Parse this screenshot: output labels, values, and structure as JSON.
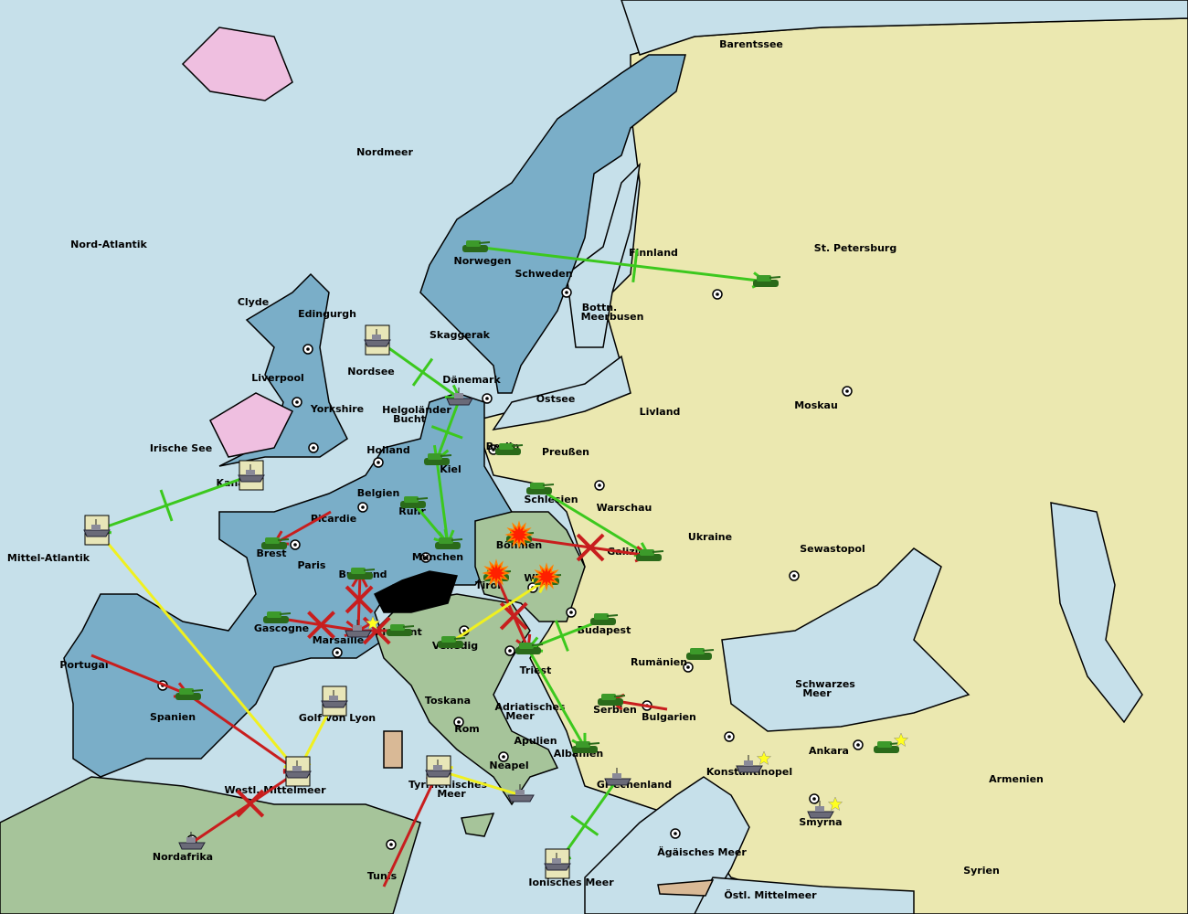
{
  "colors": {
    "sea": "#c6e0ea",
    "power_blue": "#7aaec8",
    "power_yellow": "#ebe8b0",
    "power_green": "#a6c49a",
    "neutral_pink": "#efbfe0",
    "neutral_tan": "#d9b996",
    "impassable": "#000000",
    "order_success": "#3cc81e",
    "order_failed": "#c81e1e",
    "order_support": "#f0f020"
  },
  "territories": [
    "Nordmeer",
    "Barentssee",
    "Nord-Atlantik",
    "Norwegen",
    "Schweden",
    "Finnland",
    "St. Petersburg",
    "Clyde",
    "Edingurgh",
    "Bottn.",
    "Meerbusen",
    "Skaggerak",
    "Nordsee",
    "Liverpool",
    "Dänemark",
    "Ostsee",
    "Livland",
    "Moskau",
    "Yorkshire",
    "Helgoländer",
    "Bucht",
    "Irische See",
    "Holland",
    "Berlin",
    "Preußen",
    "Kiel",
    "Kanal",
    "Belgien",
    "Schlesien",
    "Warschau",
    "Ruhr",
    "Picardie",
    "Ukraine",
    "Brest",
    "Böhmen",
    "Galizien",
    "Sewastopol",
    "Mittel-Atlantik",
    "München",
    "Paris",
    "Burgund",
    "Wien",
    "Tirol",
    "Gascogne",
    "Piemont",
    "Budapest",
    "Marsaille",
    "Venedig",
    "Portugal",
    "Rumänien",
    "Triest",
    "Schwarzes",
    "Meer",
    "Toskana",
    "Adriatisches",
    "Meer",
    "Serbien",
    "Bulgarien",
    "Spanien",
    "Golf von Lyon",
    "Rom",
    "Apulien",
    "Albanien",
    "Ankara",
    "Neapel",
    "Konstantinopel",
    "Armenien",
    "Griechenland",
    "Tyrrhenisches",
    "Meer",
    "Westl. Mittelmeer",
    "Smyrna",
    "Nordafrika",
    "Ägäisches Meer",
    "Tunis",
    "Syrien",
    "Ionisches Meer",
    "Östl. Mittelmeer"
  ],
  "units": [
    {
      "type": "army",
      "location": "Norwegen",
      "power": "green"
    },
    {
      "type": "army",
      "location": "St. Petersburg",
      "power": "green"
    },
    {
      "type": "fleet",
      "location": "Nordsee",
      "retreat": true
    },
    {
      "type": "fleet",
      "location": "Dänemark"
    },
    {
      "type": "army",
      "location": "Berlin"
    },
    {
      "type": "army",
      "location": "Kiel"
    },
    {
      "type": "army",
      "location": "Ruhr"
    },
    {
      "type": "fleet",
      "location": "Kanal",
      "retreat": true
    },
    {
      "type": "fleet",
      "location": "Mittel-Atlantik",
      "retreat": true
    },
    {
      "type": "army",
      "location": "Schlesien"
    },
    {
      "type": "army",
      "location": "Brest"
    },
    {
      "type": "army",
      "location": "München"
    },
    {
      "type": "army",
      "location": "Böhmen",
      "dislodged": true
    },
    {
      "type": "army",
      "location": "Galizien"
    },
    {
      "type": "army",
      "location": "Burgund"
    },
    {
      "type": "army",
      "location": "Tirol",
      "dislodged": true
    },
    {
      "type": "army",
      "location": "Wien",
      "dislodged": true
    },
    {
      "type": "army",
      "location": "Gascogne"
    },
    {
      "type": "fleet",
      "location": "Marsaille",
      "new": true
    },
    {
      "type": "army",
      "location": "Piemont"
    },
    {
      "type": "army",
      "location": "Budapest"
    },
    {
      "type": "army",
      "location": "Venedig"
    },
    {
      "type": "army",
      "location": "Triest"
    },
    {
      "type": "army",
      "location": "Rumänien"
    },
    {
      "type": "army",
      "location": "Spanien"
    },
    {
      "type": "fleet",
      "location": "Golf von Lyon",
      "retreat": true
    },
    {
      "type": "army",
      "location": "Serbien"
    },
    {
      "type": "army",
      "location": "Albanien"
    },
    {
      "type": "fleet",
      "location": "Westl. Mittelmeer",
      "retreat": true
    },
    {
      "type": "fleet",
      "location": "Tyrrhenisches Meer",
      "retreat": true
    },
    {
      "type": "fleet",
      "location": "Griechenland"
    },
    {
      "type": "fleet",
      "location": "Konstantinopel",
      "new": true
    },
    {
      "type": "army",
      "location": "Ankara",
      "new": true
    },
    {
      "type": "fleet",
      "location": "Neapel"
    },
    {
      "type": "fleet",
      "location": "Smyrna",
      "new": true
    },
    {
      "type": "fleet",
      "location": "Nordafrika"
    },
    {
      "type": "fleet",
      "location": "Ionisches Meer",
      "retreat": true
    }
  ],
  "orders": [
    {
      "from": "Norwegen",
      "to": "St. Petersburg",
      "status": "bounce"
    },
    {
      "from": "Nordsee",
      "to": "Dänemark",
      "status": "bounce"
    },
    {
      "from": "Dänemark",
      "to": "Kiel",
      "status": "bounce"
    },
    {
      "from": "Kanal",
      "to": "Mittel-Atlantik",
      "status": "bounce"
    },
    {
      "from": "Ruhr",
      "to": "München",
      "status": "success"
    },
    {
      "from": "Kiel",
      "to": "München",
      "status": "success"
    },
    {
      "from": "Schlesien",
      "to": "Galizien",
      "status": "success"
    },
    {
      "from": "Budapest",
      "to": "Triest",
      "status": "bounce"
    },
    {
      "from": "Triest",
      "to": "Albanien",
      "status": "success"
    },
    {
      "from": "Griechenland",
      "to": "Ionisches Meer",
      "status": "bounce"
    },
    {
      "from": "Picardie",
      "to": "Brest",
      "status": "failed-arrow"
    },
    {
      "from": "Marsaille",
      "to": "Burgund",
      "status": "failed"
    },
    {
      "from": "Gascogne",
      "to": "Marsaille",
      "status": "failed"
    },
    {
      "from": "Piemont",
      "to": "Marsaille",
      "status": "failed"
    },
    {
      "from": "Böhmen",
      "to": "Galizien",
      "status": "failed"
    },
    {
      "from": "Tirol",
      "to": "Triest",
      "status": "failed"
    },
    {
      "from": "Portugal",
      "to": "Spanien",
      "status": "failed-arrow"
    },
    {
      "from": "Spanien",
      "to": "Westl. Mittelmeer",
      "status": "failed-arrow"
    },
    {
      "from": "Nordafrika",
      "to": "Westl. Mittelmeer",
      "status": "failed"
    },
    {
      "from": "Tunis",
      "to": "Tyrrhenisches Meer",
      "status": "failed-arrow"
    },
    {
      "from": "Bulgarien",
      "to": "Serbien",
      "status": "failed-arrow"
    },
    {
      "from": "Mittel-Atlantik",
      "to": "Westl. Mittelmeer",
      "status": "support"
    },
    {
      "from": "Golf von Lyon",
      "to": "Westl. Mittelmeer",
      "status": "support"
    },
    {
      "from": "Venedig",
      "to": "Wien",
      "status": "support"
    },
    {
      "from": "Neapel",
      "to": "Tyrrhenisches Meer",
      "status": "support"
    }
  ]
}
